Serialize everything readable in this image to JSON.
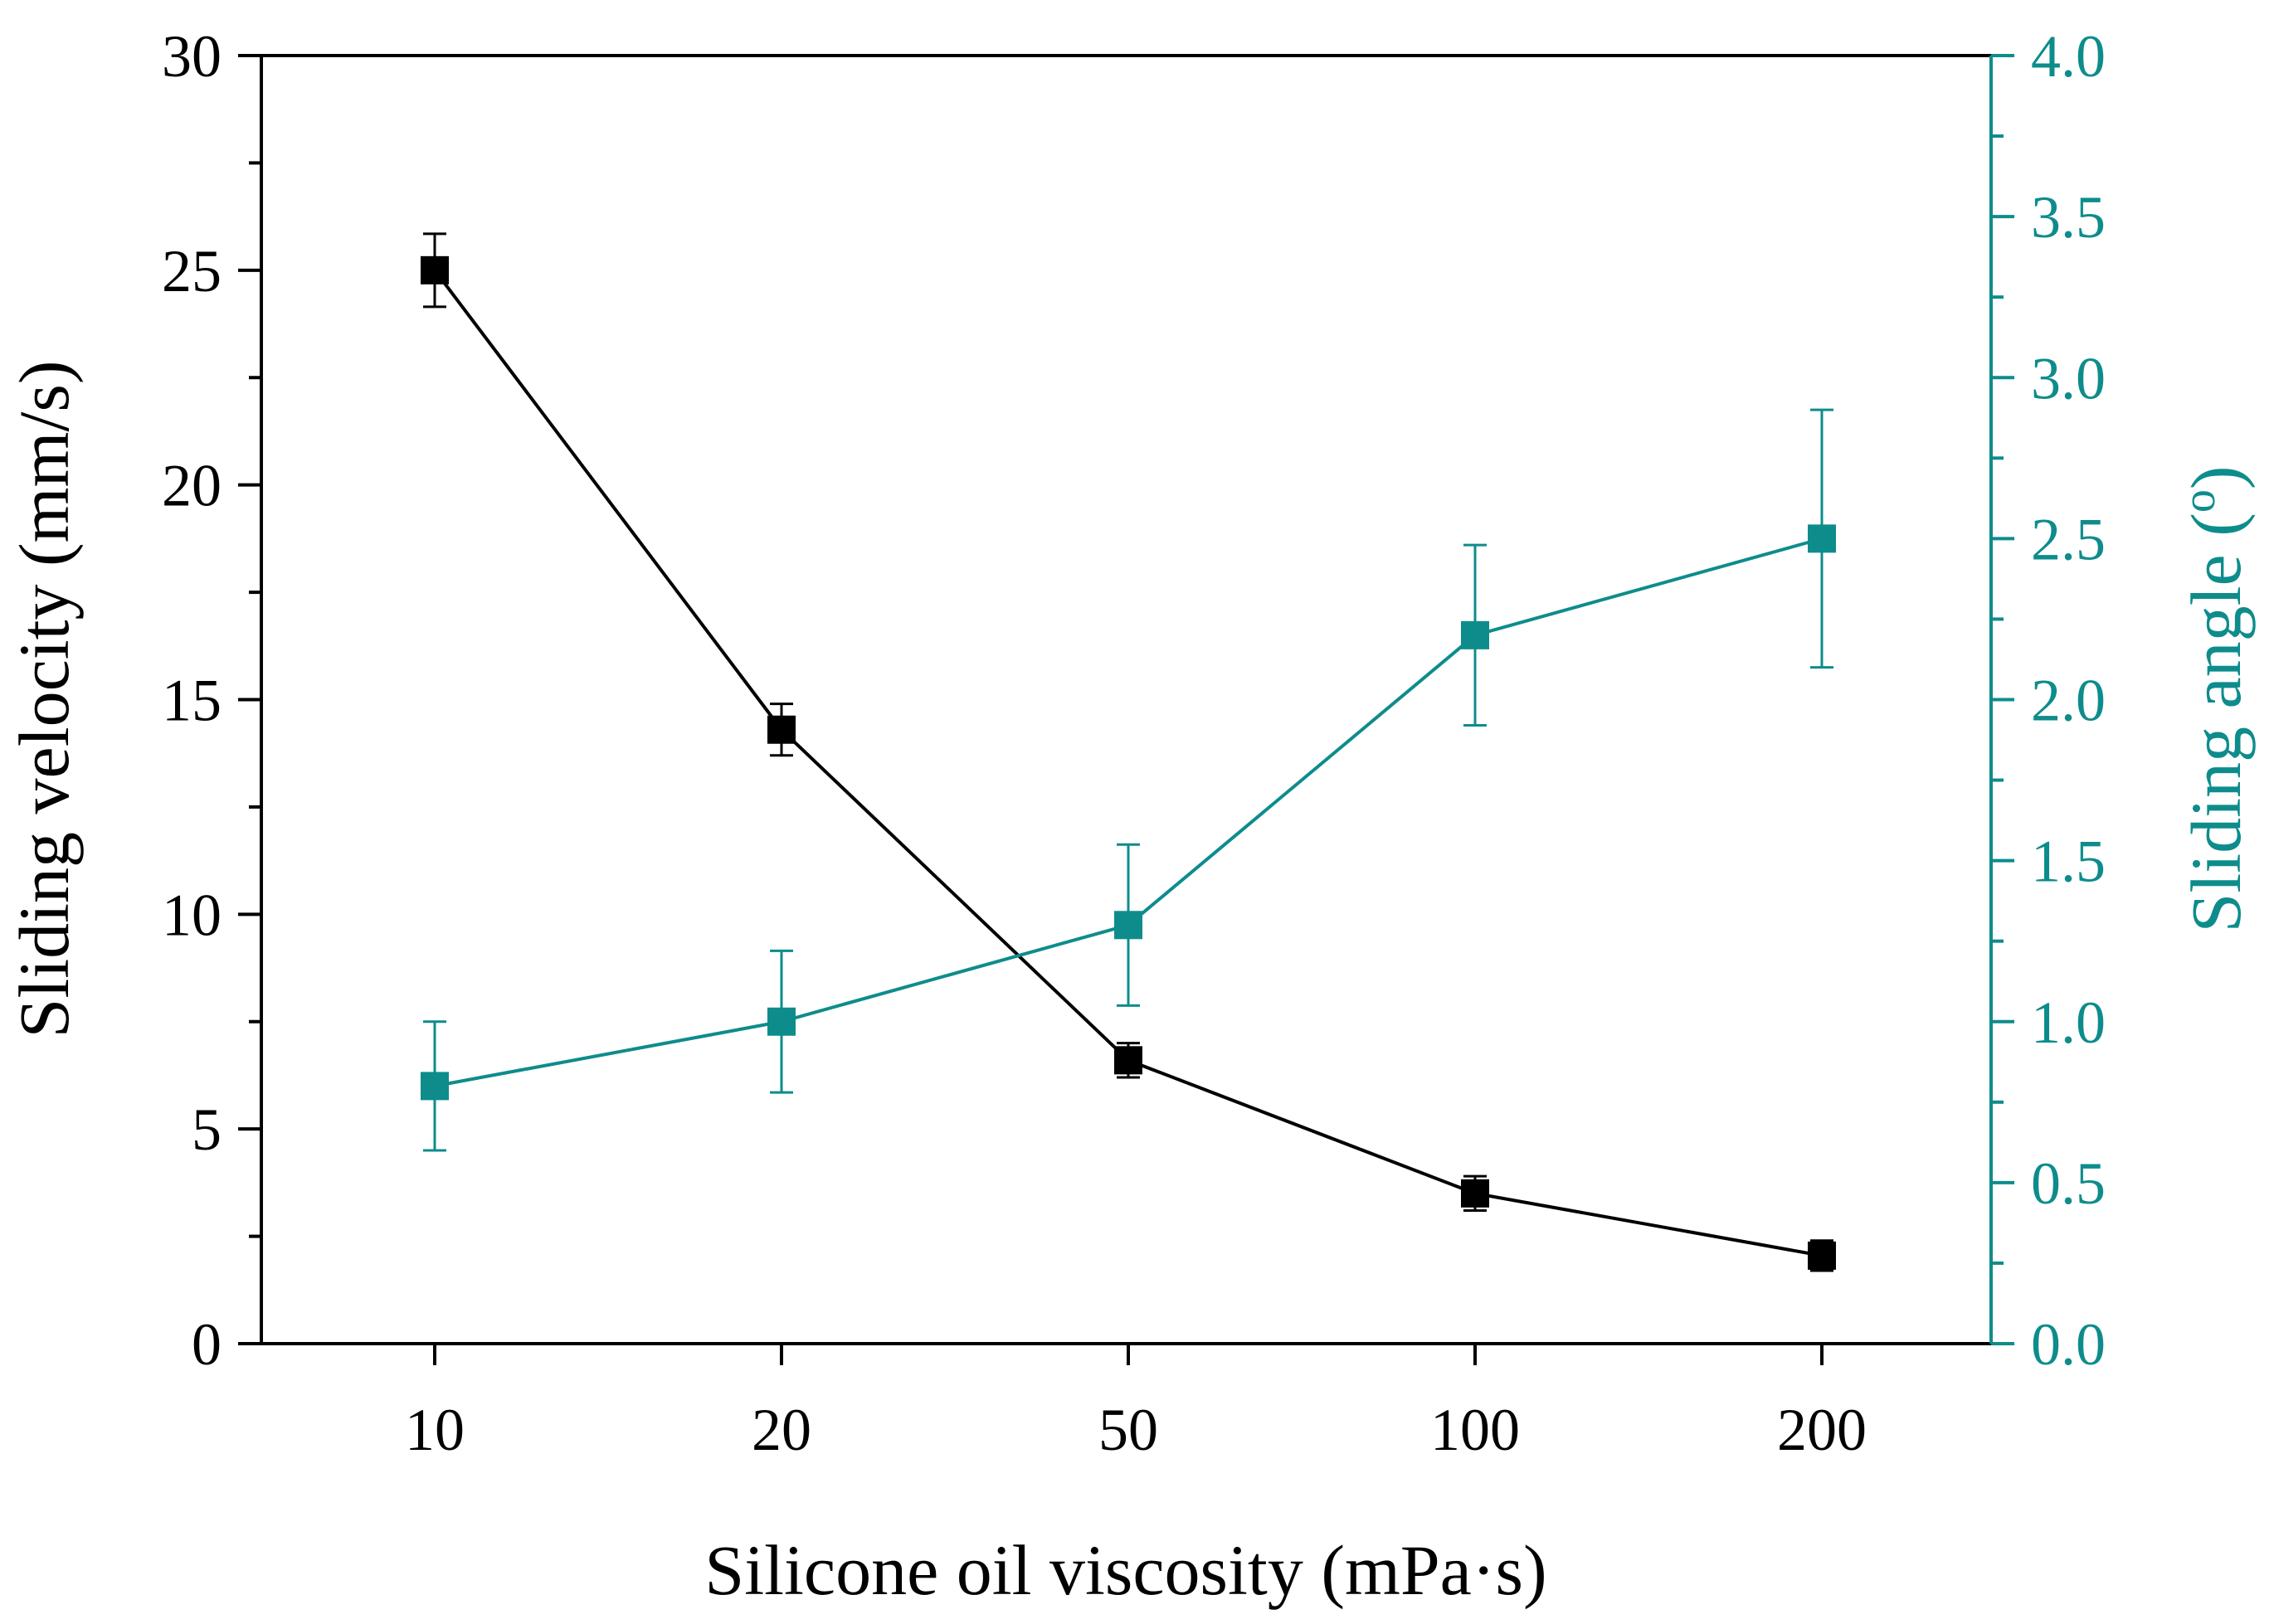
{
  "chart_data": {
    "type": "line",
    "categories": [
      "10",
      "20",
      "50",
      "100",
      "200"
    ],
    "xlabel": "Silicone oil viscosity (mPa·s)",
    "ylabel_left": "Sliding velocity (mm/s)",
    "ylabel_right_prefix": "Sliding angle (",
    "ylabel_right_degree": "o",
    "ylabel_right_suffix": ")",
    "left_axis": {
      "ylim": [
        0,
        30
      ],
      "ticks": [
        0,
        5,
        10,
        15,
        20,
        25,
        30
      ],
      "tick_labels": [
        "0",
        "5",
        "10",
        "15",
        "20",
        "25",
        "30"
      ]
    },
    "right_axis": {
      "ylim": [
        0,
        4
      ],
      "ticks": [
        0,
        0.5,
        1,
        1.5,
        2,
        2.5,
        3,
        3.5,
        4
      ],
      "tick_labels": [
        "0.0",
        "0.5",
        "1.0",
        "1.5",
        "2.0",
        "2.5",
        "3.0",
        "3.5",
        "4.0"
      ]
    },
    "grid": false,
    "series": [
      {
        "axis": "left",
        "color": "#000000",
        "marker": "square",
        "values": [
          25.0,
          14.3,
          6.6,
          3.5,
          2.05
        ],
        "errors": [
          0.85,
          0.6,
          0.4,
          0.4,
          0.35
        ]
      },
      {
        "axis": "right",
        "color": "#0E8C8C",
        "marker": "square",
        "values": [
          0.8,
          1.0,
          1.3,
          2.2,
          2.5
        ],
        "errors": [
          0.2,
          0.22,
          0.25,
          0.28,
          0.4
        ]
      }
    ]
  }
}
